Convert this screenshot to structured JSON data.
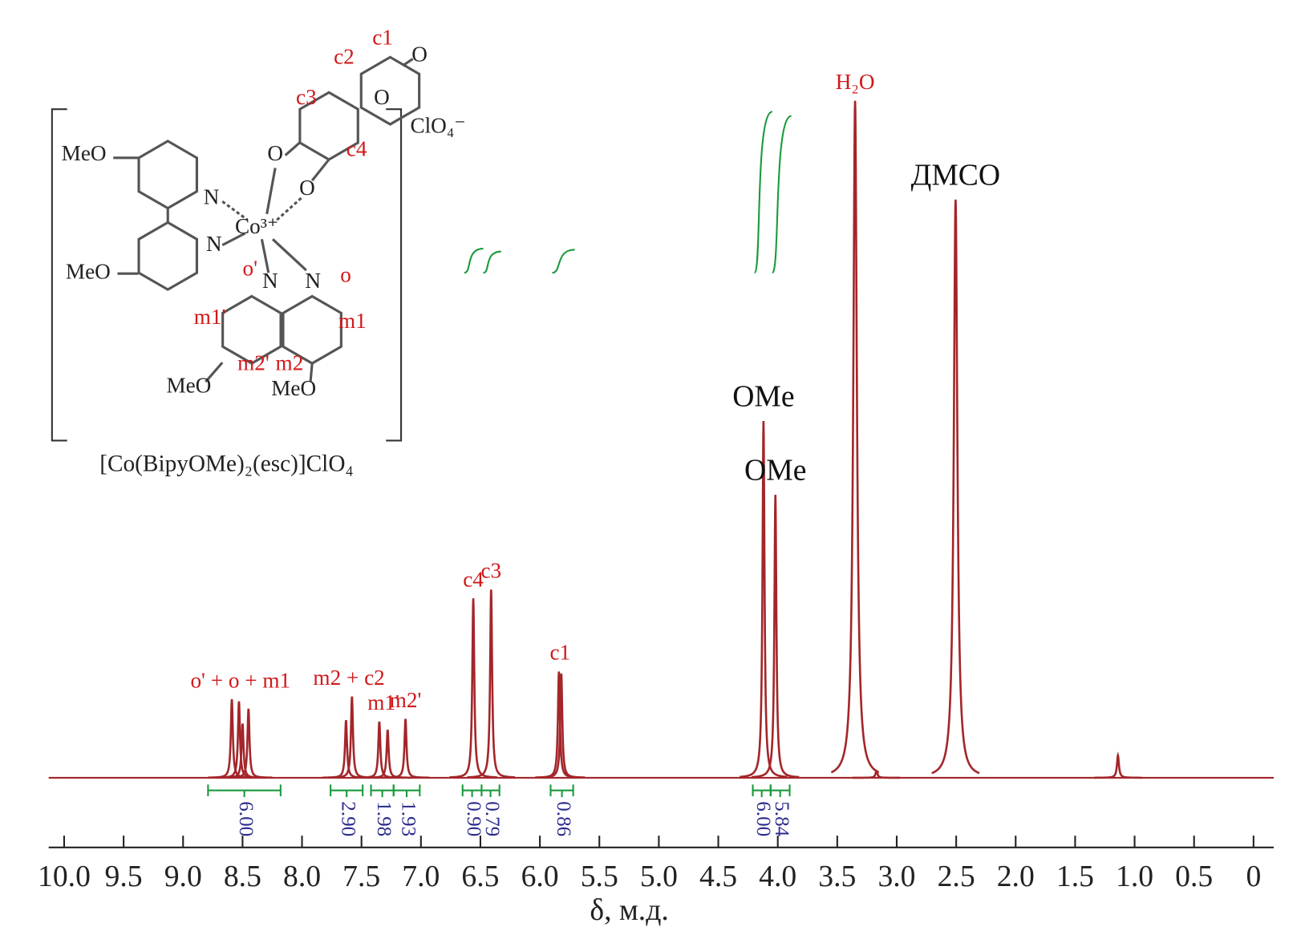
{
  "chart_data": {
    "type": "spectrum",
    "x_label": "δ, м.д.",
    "xlim": [
      10.13,
      -0.17
    ],
    "xticks": [
      {
        "value": 10,
        "label": "10.0"
      },
      9.5,
      {
        "value": 9,
        "label": "9.0"
      },
      8.5,
      {
        "value": 8,
        "label": "8.0"
      },
      7.5,
      {
        "value": 7,
        "label": "7.0"
      },
      6.5,
      {
        "value": 6,
        "label": "6.0"
      },
      5.5,
      {
        "value": 5,
        "label": "5.0"
      },
      4.5,
      {
        "value": 4,
        "label": "4.0"
      },
      3.5,
      {
        "value": 3,
        "label": "3.0"
      },
      2.5,
      {
        "value": 2,
        "label": "2.0"
      },
      1.5,
      {
        "value": 1,
        "label": "1.0"
      },
      0.5,
      0
    ],
    "color": "#a3262a",
    "integral_color": "#1a9a3c",
    "integral_label_color": "#2b2b8c",
    "signals": [
      {
        "label": "o' + o + m1",
        "x": [
          8.59,
          8.53,
          8.5,
          8.45
        ],
        "values": [
          11.6,
          11.3,
          8.0,
          10.2
        ]
      },
      {
        "label": "m2 + c2",
        "x": [
          7.63,
          7.58
        ],
        "values": [
          8.5,
          12.0
        ]
      },
      {
        "label": "m1'",
        "x": [
          7.35,
          7.28
        ],
        "values": [
          8.3,
          7.1
        ]
      },
      {
        "label": "m2'",
        "x": [
          7.13
        ],
        "values": [
          8.7
        ]
      },
      {
        "label": "c4",
        "x": [
          6.56
        ],
        "values": [
          26.5
        ]
      },
      {
        "label": "c3",
        "x": [
          6.41
        ],
        "values": [
          27.8
        ]
      },
      {
        "label": "c1",
        "x": [
          5.84,
          5.82
        ],
        "values": [
          15.7,
          15.4
        ]
      },
      {
        "label": "OMe",
        "x": [
          4.12
        ],
        "values": [
          52.7
        ]
      },
      {
        "label": "OMe",
        "x": [
          4.02
        ],
        "values": [
          41.8
        ]
      },
      {
        "label": "H₂O",
        "x": [
          3.35
        ],
        "values": [
          100
        ]
      },
      {
        "label": "ДМСО",
        "x": [
          2.505
        ],
        "values": [
          85.4
        ]
      },
      {
        "x": [
          3.17,
          1.14
        ],
        "values": [
          1.0,
          3.3
        ]
      }
    ],
    "integrals": {
      "ranges": [
        [
          8.79,
          8.18
        ],
        [
          7.76,
          7.49
        ],
        [
          7.42,
          7.23
        ],
        [
          7.23,
          7.01
        ],
        [
          6.65,
          6.49
        ],
        [
          6.49,
          6.34
        ],
        [
          5.91,
          5.72
        ],
        [
          4.21,
          4.06
        ],
        [
          4.06,
          3.9
        ]
      ],
      "values": [
        6,
        2.9,
        1.98,
        1.93,
        0.9,
        0.79,
        0.86,
        6,
        5.84
      ],
      "value_labels": [
        "6.00",
        "2.90",
        "1.98",
        "1.93",
        "0.90",
        "0.79",
        "0.86",
        "6.00",
        "5.84"
      ]
    }
  },
  "structure": {
    "caption": "[Co(BipyOMe)₂(esc)]ClO₄",
    "atoms": [
      "MeO",
      "N",
      "N",
      "Co³⁺",
      "MeO",
      "N",
      "N",
      "MeO",
      "MeO",
      "O",
      "O",
      "O",
      "O",
      "ClO₄⁻"
    ],
    "labels": [
      "c1",
      "c2",
      "c3",
      "c4",
      "o'",
      "o",
      "m1'",
      "m1",
      "m2'",
      "m2"
    ],
    "label_color": "#d0191b"
  }
}
